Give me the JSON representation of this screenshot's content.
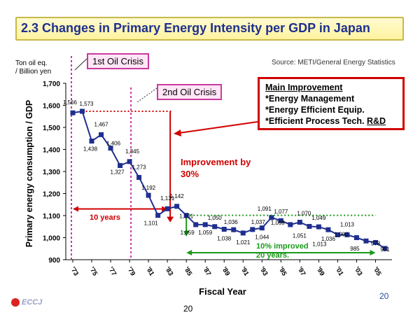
{
  "header": {
    "title": "2.3 Changes in Primary Energy Intensity per GDP in Japan",
    "source": "Source: METI/General Energy Statistics",
    "slide_number": "20",
    "footer_number": "20",
    "logo_text": "ECCJ"
  },
  "labels": {
    "unit_line1": "Ton oil eq.",
    "unit_line2": "/ Billion yen",
    "oil_crisis_1": "1st Oil Crisis",
    "oil_crisis_2": "2nd Oil Crisis",
    "improvement_line1": "Improvement by",
    "improvement_line2": "30%",
    "ten_years": "10 years",
    "ten_pct_line1": "10% improved",
    "ten_pct_line2": "20 years."
  },
  "callout": {
    "heading": "Main Improvement",
    "items": [
      "*Energy Management",
      "*Energy Efficient Equip.",
      "*Efficient Process Tech. "
    ],
    "rd": "R&D"
  },
  "colors": {
    "series": "#1f2f8f",
    "accent_red": "#d10000",
    "crisis_line": "#c83aa0",
    "green": "#1a9a1a"
  },
  "chart_data": {
    "type": "line",
    "title": "2.3 Changes in Primary Energy Intensity per GDP in Japan",
    "xlabel": "Fiscal Year",
    "ylabel": "Primary energy consumption / GDP",
    "ylim": [
      900,
      1700
    ],
    "yticks": [
      900,
      1000,
      1100,
      1200,
      1300,
      1400,
      1500,
      1600,
      1700
    ],
    "ytick_labels": [
      "900",
      "1,000",
      "1,100",
      "1,200",
      "1,300",
      "1,400",
      "1,500",
      "1,600",
      "1,700"
    ],
    "xtick_labels": [
      "'73",
      "'75",
      "'77",
      "'79",
      "'81",
      "'83",
      "'85",
      "'87",
      "'89",
      "'91",
      "'93",
      "'95",
      "'97",
      "'99",
      "'01",
      "'03",
      "'05"
    ],
    "x": [
      1973,
      1974,
      1975,
      1976,
      1977,
      1978,
      1979,
      1980,
      1981,
      1982,
      1983,
      1984,
      1985,
      1986,
      1987,
      1988,
      1989,
      1990,
      1991,
      1992,
      1993,
      1994,
      1995,
      1996,
      1997,
      1998,
      1999,
      2000,
      2001,
      2002,
      2003,
      2004,
      2005,
      2006
    ],
    "values": [
      1566,
      1573,
      1438,
      1467,
      1406,
      1327,
      1345,
      1273,
      1192,
      1101,
      1131,
      1142,
      1101,
      1059,
      1059,
      1050,
      1038,
      1036,
      1021,
      1037,
      1044,
      1091,
      1077,
      1059,
      1070,
      1051,
      1049,
      1036,
      1013,
      1013,
      1000,
      985,
      978,
      951
    ],
    "data_labels": [
      "1,566",
      "1,573",
      "1,438",
      "1,467",
      "1,406",
      "1,327",
      "1,345",
      "1,273",
      "1,192",
      "1,101",
      "1,131",
      "1,142",
      "1,101",
      "1,059",
      "1,059",
      "1,050",
      "1,038",
      "1,036",
      "1,021",
      "1,037",
      "1,044",
      "1,091",
      "1,077",
      "1,059",
      "1,070",
      "1,051",
      "1,049",
      "1,036",
      "1,013",
      "1,013",
      "1,000",
      "985",
      "978",
      "951"
    ],
    "data_label_dx": [
      -4,
      6,
      -2,
      0,
      4,
      -4,
      4,
      0,
      0,
      -10,
      0,
      0,
      0,
      -12,
      0,
      0,
      0,
      -4,
      0,
      8,
      0,
      -10,
      0,
      -18,
      6,
      -14,
      0,
      0,
      -26,
      0,
      -22,
      -16,
      0,
      0
    ],
    "data_label_dy": [
      -12,
      -8,
      14,
      -12,
      -4,
      12,
      -12,
      -12,
      -8,
      14,
      -12,
      -12,
      4,
      14,
      14,
      -10,
      16,
      -8,
      16,
      -8,
      16,
      -10,
      -10,
      0,
      -10,
      16,
      -10,
      16,
      16,
      -12,
      -2,
      14,
      4,
      4
    ],
    "grid": false,
    "legend": "none"
  }
}
